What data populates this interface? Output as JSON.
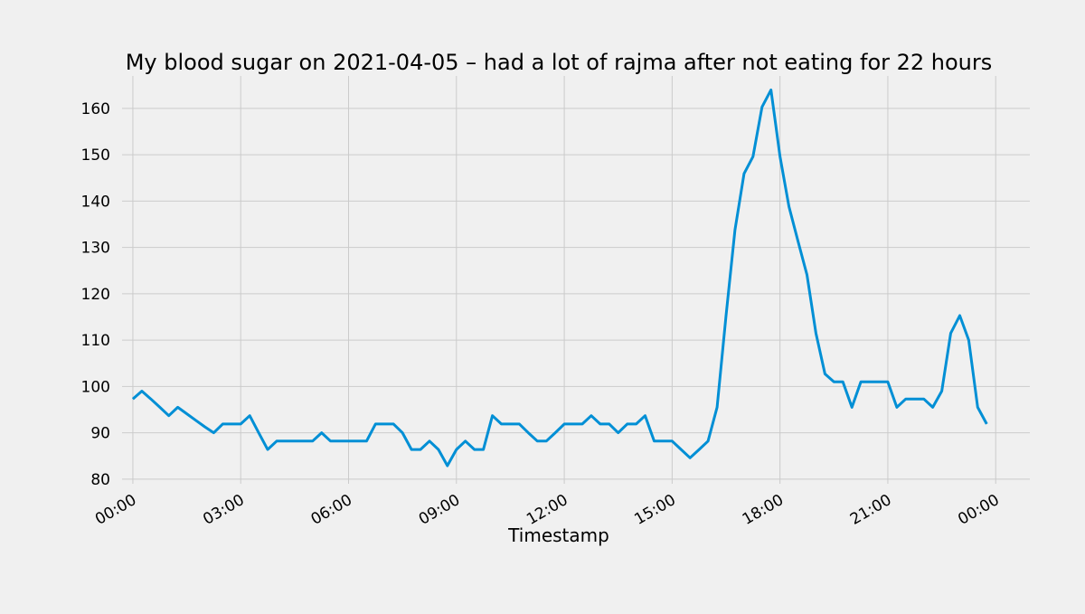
{
  "chart_data": {
    "type": "line",
    "title": "My blood sugar on 2021-04-05 – had a lot of rajma after not eating for 22 hours",
    "xlabel": "Timestamp",
    "ylabel": "",
    "x_tick_labels": [
      "00:00",
      "03:00",
      "06:00",
      "09:00",
      "12:00",
      "15:00",
      "18:00",
      "21:00",
      "00:00"
    ],
    "x_tick_hours": [
      0,
      3,
      6,
      9,
      12,
      15,
      18,
      21,
      24
    ],
    "y_ticks": [
      80,
      90,
      100,
      110,
      120,
      130,
      140,
      150,
      160
    ],
    "xlim_hours": [
      -0.3,
      24.95
    ],
    "ylim": [
      79,
      167
    ],
    "grid": true,
    "line_color": "#008fd5",
    "series": [
      {
        "x_hours": [
          0,
          0.25,
          0.5,
          0.75,
          1.0,
          1.25,
          1.5,
          1.75,
          2.0,
          2.25,
          2.5,
          2.75,
          3.0,
          3.25,
          3.5,
          3.75,
          4.0,
          4.25,
          4.5,
          4.75,
          5.0,
          5.25,
          5.5,
          5.75,
          6.0,
          6.25,
          6.5,
          6.75,
          7.0,
          7.25,
          7.5,
          7.75,
          8.0,
          8.25,
          8.5,
          8.75,
          9.0,
          9.25,
          9.5,
          9.75,
          10.0,
          10.25,
          10.5,
          10.75,
          11.0,
          11.25,
          11.5,
          11.75,
          12.0,
          12.25,
          12.5,
          12.75,
          13.0,
          13.25,
          13.5,
          13.75,
          14.0,
          14.25,
          14.5,
          14.75,
          15.0,
          15.25,
          15.5,
          15.75,
          16.0,
          16.25,
          16.5,
          16.75,
          17.0,
          17.25,
          17.5,
          17.75,
          18.0,
          18.25,
          18.5,
          18.75,
          19.0,
          19.25,
          19.5,
          19.75,
          20.0,
          20.25,
          20.5,
          20.75,
          21.0,
          21.25,
          21.5,
          21.75,
          22.0,
          22.25,
          22.5,
          22.75,
          23.0,
          23.25,
          23.5,
          23.75
        ],
        "y": [
          97.3,
          99.0,
          97.3,
          95.5,
          93.7,
          95.5,
          94.1,
          92.7,
          91.3,
          90.0,
          91.9,
          91.9,
          91.9,
          93.7,
          90.0,
          86.4,
          88.2,
          88.2,
          88.2,
          88.2,
          88.2,
          90.0,
          88.2,
          88.2,
          88.2,
          88.2,
          88.2,
          91.9,
          91.9,
          91.9,
          90.0,
          86.4,
          86.4,
          88.2,
          86.4,
          82.9,
          86.4,
          88.2,
          86.4,
          86.4,
          93.7,
          91.9,
          91.9,
          91.9,
          90.0,
          88.2,
          88.2,
          90.0,
          91.9,
          91.9,
          91.9,
          93.7,
          91.9,
          91.9,
          90.0,
          91.9,
          91.9,
          93.7,
          88.2,
          88.2,
          88.2,
          86.4,
          84.6,
          86.4,
          88.2,
          95.5,
          115.3,
          133.8,
          145.9,
          149.6,
          160.3,
          164.0,
          149.6,
          138.8,
          131.4,
          124.1,
          111.5,
          102.7,
          101.0,
          101.0,
          95.5,
          101.0,
          101.0,
          101.0,
          101.0,
          95.5,
          97.3,
          97.3,
          97.3,
          95.5,
          99.0,
          111.5,
          115.3,
          110.0,
          95.5,
          91.9
        ]
      }
    ]
  }
}
